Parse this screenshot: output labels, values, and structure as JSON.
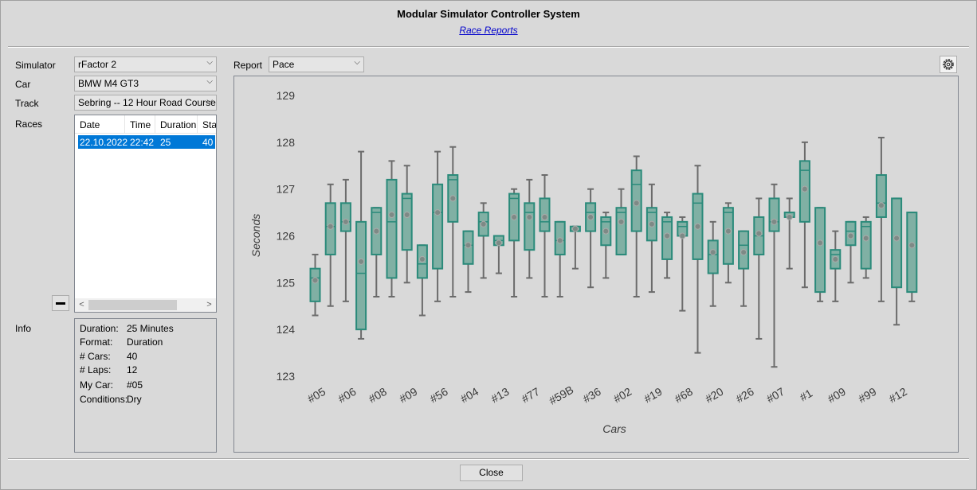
{
  "window": {
    "title": "Modular Simulator Controller System",
    "subtitle": "Race Reports"
  },
  "form": {
    "simulator_label": "Simulator",
    "simulator_value": "rFactor 2",
    "car_label": "Car",
    "car_value": "BMW M4 GT3",
    "track_label": "Track",
    "track_value": "Sebring -- 12 Hour Road Course",
    "races_label": "Races",
    "info_label": "Info",
    "report_label": "Report",
    "report_value": "Pace"
  },
  "races": {
    "columns": [
      "Date",
      "Time",
      "Duration",
      "Sta"
    ],
    "rows": [
      {
        "date": "22.10.2022",
        "time": "22:42",
        "duration": "25",
        "start": "40"
      }
    ]
  },
  "info": [
    {
      "k": "Duration:",
      "v": "25 Minutes"
    },
    {
      "k": "Format:",
      "v": "Duration"
    },
    {
      "k": "# Cars:",
      "v": "40"
    },
    {
      "k": "# Laps:",
      "v": "12"
    },
    {
      "k": "My Car:",
      "v": "#05"
    },
    {
      "k": "Conditions:",
      "v": "Dry"
    }
  ],
  "buttons": {
    "close": "Close"
  },
  "colors": {
    "box_fill": "#80b0a4",
    "box_stroke": "#2a8a7a",
    "selection": "#0078d7"
  },
  "chart_data": {
    "type": "box",
    "xlabel": "Cars",
    "ylabel": "Seconds",
    "ylim": [
      123,
      129
    ],
    "yticks": [
      123,
      124,
      125,
      126,
      127,
      128,
      129
    ],
    "xtick_labels": [
      "#05",
      "#06",
      "#08",
      "#09",
      "#56",
      "#04",
      "#13",
      "#77",
      "#59B",
      "#36",
      "#02",
      "#19",
      "#68",
      "#20",
      "#26",
      "#07",
      "#1",
      "#09",
      "#99",
      "#12"
    ],
    "boxes": [
      {
        "min": 124.3,
        "q1": 124.6,
        "median": 125.1,
        "q3": 125.3,
        "max": 125.6,
        "mean": 125.05
      },
      {
        "min": 124.5,
        "q1": 125.6,
        "median": 126.2,
        "q3": 126.7,
        "max": 127.1,
        "mean": 126.2
      },
      {
        "min": 124.6,
        "q1": 126.1,
        "median": 126.3,
        "q3": 126.7,
        "max": 127.2,
        "mean": 126.3
      },
      {
        "min": 123.8,
        "q1": 124.0,
        "median": 125.2,
        "q3": 126.3,
        "max": 127.8,
        "mean": 125.45
      },
      {
        "min": 124.7,
        "q1": 125.6,
        "median": 126.5,
        "q3": 126.6,
        "max": 126.6,
        "mean": 126.1
      },
      {
        "min": 124.7,
        "q1": 125.1,
        "median": 126.3,
        "q3": 127.2,
        "max": 127.6,
        "mean": 126.45
      },
      {
        "min": 125.0,
        "q1": 125.7,
        "median": 126.8,
        "q3": 126.9,
        "max": 127.5,
        "mean": 126.45
      },
      {
        "min": 124.3,
        "q1": 125.1,
        "median": 125.4,
        "q3": 125.8,
        "max": 125.8,
        "mean": 125.5
      },
      {
        "min": 124.6,
        "q1": 125.3,
        "median": 126.5,
        "q3": 127.1,
        "max": 127.8,
        "mean": 126.5
      },
      {
        "min": 124.7,
        "q1": 126.3,
        "median": 127.2,
        "q3": 127.3,
        "max": 127.9,
        "mean": 126.8
      },
      {
        "min": 124.8,
        "q1": 125.4,
        "median": 125.8,
        "q3": 126.1,
        "max": 126.1,
        "mean": 125.8
      },
      {
        "min": 125.1,
        "q1": 126.0,
        "median": 126.3,
        "q3": 126.5,
        "max": 126.7,
        "mean": 126.25
      },
      {
        "min": 125.2,
        "q1": 125.8,
        "median": 125.9,
        "q3": 126.0,
        "max": 126.0,
        "mean": 125.85
      },
      {
        "min": 124.7,
        "q1": 125.9,
        "median": 126.8,
        "q3": 126.9,
        "max": 127.0,
        "mean": 126.4
      },
      {
        "min": 125.1,
        "q1": 125.7,
        "median": 126.5,
        "q3": 126.7,
        "max": 127.2,
        "mean": 126.4
      },
      {
        "min": 124.7,
        "q1": 126.1,
        "median": 126.3,
        "q3": 126.8,
        "max": 127.3,
        "mean": 126.4
      },
      {
        "min": 124.7,
        "q1": 125.6,
        "median": 125.9,
        "q3": 126.3,
        "max": 126.3,
        "mean": 125.9
      },
      {
        "min": 125.3,
        "q1": 126.1,
        "median": 126.1,
        "q3": 126.2,
        "max": 126.2,
        "mean": 126.15
      },
      {
        "min": 124.9,
        "q1": 126.1,
        "median": 126.5,
        "q3": 126.7,
        "max": 127.0,
        "mean": 126.4
      },
      {
        "min": 125.1,
        "q1": 125.8,
        "median": 126.3,
        "q3": 126.4,
        "max": 126.5,
        "mean": 126.1
      },
      {
        "min": 125.6,
        "q1": 125.6,
        "median": 126.5,
        "q3": 126.6,
        "max": 127.0,
        "mean": 126.3
      },
      {
        "min": 124.7,
        "q1": 126.1,
        "median": 127.1,
        "q3": 127.4,
        "max": 127.7,
        "mean": 126.7
      },
      {
        "min": 124.8,
        "q1": 125.9,
        "median": 126.5,
        "q3": 126.6,
        "max": 127.1,
        "mean": 126.25
      },
      {
        "min": 125.1,
        "q1": 125.5,
        "median": 126.3,
        "q3": 126.4,
        "max": 126.5,
        "mean": 126.0
      },
      {
        "min": 124.4,
        "q1": 126.0,
        "median": 126.2,
        "q3": 126.3,
        "max": 126.4,
        "mean": 126.0
      },
      {
        "min": 123.5,
        "q1": 125.5,
        "median": 126.7,
        "q3": 126.9,
        "max": 127.5,
        "mean": 126.2
      },
      {
        "min": 124.5,
        "q1": 125.2,
        "median": 125.6,
        "q3": 125.9,
        "max": 126.3,
        "mean": 125.65
      },
      {
        "min": 125.0,
        "q1": 125.4,
        "median": 126.5,
        "q3": 126.6,
        "max": 126.7,
        "mean": 126.1
      },
      {
        "min": 124.5,
        "q1": 125.3,
        "median": 125.8,
        "q3": 126.1,
        "max": 126.1,
        "mean": 125.65
      },
      {
        "min": 123.8,
        "q1": 125.6,
        "median": 126.0,
        "q3": 126.4,
        "max": 126.8,
        "mean": 126.05
      },
      {
        "min": 123.2,
        "q1": 126.1,
        "median": 126.3,
        "q3": 126.8,
        "max": 127.1,
        "mean": 126.3
      },
      {
        "min": 125.3,
        "q1": 126.4,
        "median": 126.5,
        "q3": 126.5,
        "max": 126.8,
        "mean": 126.4
      },
      {
        "min": 124.9,
        "q1": 126.3,
        "median": 127.4,
        "q3": 127.6,
        "max": 128.0,
        "mean": 127.0
      },
      {
        "min": 124.6,
        "q1": 124.8,
        "median": 126.6,
        "q3": 126.6,
        "max": 126.6,
        "mean": 125.85
      },
      {
        "min": 124.6,
        "q1": 125.3,
        "median": 125.6,
        "q3": 125.7,
        "max": 126.1,
        "mean": 125.5
      },
      {
        "min": 125.0,
        "q1": 125.8,
        "median": 126.1,
        "q3": 126.3,
        "max": 126.3,
        "mean": 126.0
      },
      {
        "min": 125.1,
        "q1": 125.3,
        "median": 126.2,
        "q3": 126.3,
        "max": 126.4,
        "mean": 125.95
      },
      {
        "min": 124.6,
        "q1": 126.4,
        "median": 126.7,
        "q3": 127.3,
        "max": 128.1,
        "mean": 126.65
      },
      {
        "min": 124.1,
        "q1": 124.9,
        "median": 126.8,
        "q3": 126.8,
        "max": 126.8,
        "mean": 125.95
      },
      {
        "min": 124.6,
        "q1": 124.8,
        "median": 126.5,
        "q3": 126.5,
        "max": 126.5,
        "mean": 125.8
      }
    ]
  }
}
